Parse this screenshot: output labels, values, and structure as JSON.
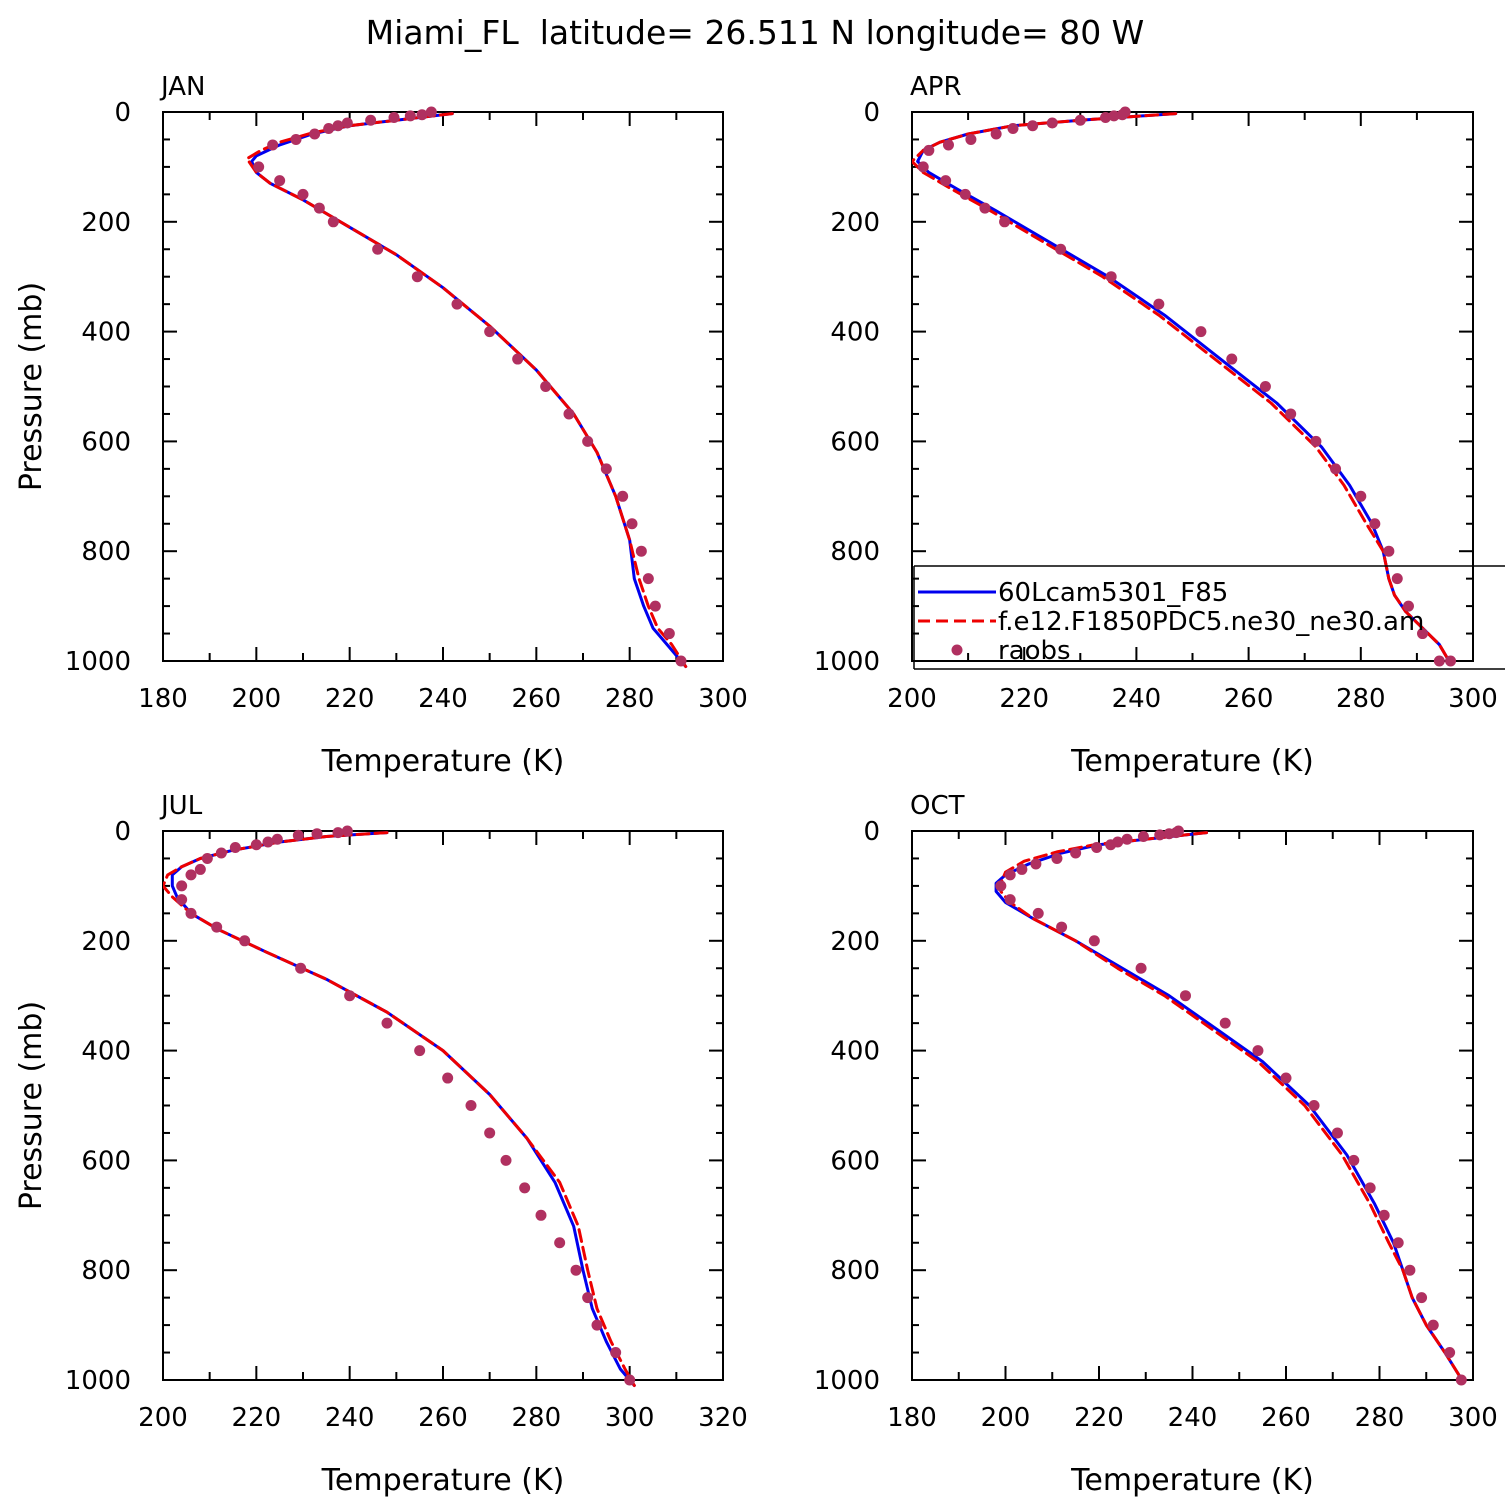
{
  "figure_title": "Miami_FL  latitude= 26.511 N longitude= 80 W",
  "colors": {
    "model1": "#0000ee",
    "model2": "#ee0000",
    "obs": "#b03060"
  },
  "chart_data": [
    {
      "type": "line",
      "label": "JAN",
      "xlabel": "Temperature (K)",
      "ylabel": "Pressure (mb)",
      "xlim": [
        180,
        300
      ],
      "ylim": [
        1000,
        0
      ],
      "xticks": [
        180,
        200,
        220,
        240,
        260,
        280,
        300
      ],
      "yticks": [
        0,
        200,
        400,
        600,
        800,
        1000
      ],
      "legend": null,
      "series": [
        {
          "name": "60Lcam5301_F85",
          "style": "solid",
          "x": [
            242,
            230,
            220,
            212,
            205,
            200,
            199,
            200,
            203,
            210,
            220,
            230,
            240,
            250,
            260,
            268,
            273,
            277,
            280,
            281,
            283,
            285,
            288,
            292
          ],
          "y": [
            3,
            15,
            25,
            40,
            60,
            80,
            90,
            110,
            130,
            160,
            210,
            260,
            320,
            390,
            470,
            550,
            620,
            700,
            780,
            850,
            900,
            940,
            970,
            1010
          ]
        },
        {
          "name": "f.e12.F1850PDC5.ne30_ne30.am",
          "style": "dashed",
          "x": [
            242,
            230,
            220,
            212,
            205,
            201,
            198,
            200,
            203,
            210,
            220,
            230,
            240,
            250,
            260,
            268,
            273,
            277,
            280,
            282,
            284,
            286,
            289,
            292
          ],
          "y": [
            3,
            15,
            25,
            38,
            55,
            70,
            85,
            110,
            130,
            160,
            210,
            260,
            320,
            390,
            470,
            550,
            620,
            700,
            780,
            850,
            900,
            940,
            970,
            1010
          ]
        },
        {
          "name": "raobs",
          "style": "markers",
          "x": [
            237.5,
            235.5,
            233,
            229.5,
            224.5,
            219.5,
            217.5,
            215.5,
            212.5,
            208.5,
            203.5,
            200.5,
            205,
            210,
            213.5,
            216.5,
            226,
            234.5,
            243,
            250,
            256,
            262,
            267,
            271,
            275,
            278.5,
            280.5,
            282.5,
            284,
            285.5,
            288.5,
            291
          ],
          "y": [
            0,
            5,
            7,
            10,
            15,
            20,
            25,
            30,
            40,
            50,
            60,
            100,
            125,
            150,
            175,
            200,
            250,
            300,
            350,
            400,
            450,
            500,
            550,
            600,
            650,
            700,
            750,
            800,
            850,
            900,
            950,
            1000
          ]
        }
      ]
    },
    {
      "type": "line",
      "label": "APR",
      "xlabel": "Temperature (K)",
      "ylabel": "",
      "xlim": [
        200,
        300
      ],
      "ylim": [
        1000,
        0
      ],
      "xticks": [
        200,
        220,
        240,
        260,
        280,
        300
      ],
      "yticks": [
        0,
        200,
        400,
        600,
        800,
        1000
      ],
      "legend": {
        "entries": [
          {
            "label": "60Lcam5301_F85",
            "style": "solid"
          },
          {
            "label": "f.e12.F1850PDC5.ne30_ne30.am",
            "style": "dashed"
          },
          {
            "label": "raobs",
            "style": "markers"
          }
        ]
      },
      "series": [
        {
          "name": "60Lcam5301_F85",
          "style": "solid",
          "x": [
            247,
            230,
            218,
            210,
            205,
            202,
            201,
            203,
            208,
            215,
            225,
            235,
            245,
            255,
            265,
            273,
            278,
            282,
            284,
            285,
            286,
            288,
            291,
            294,
            296
          ],
          "y": [
            3,
            15,
            25,
            40,
            55,
            70,
            90,
            110,
            140,
            180,
            240,
            300,
            370,
            450,
            530,
            610,
            680,
            750,
            800,
            850,
            880,
            910,
            940,
            970,
            1005
          ]
        },
        {
          "name": "f.e12.F1850PDC5.ne30_ne30.am",
          "style": "dashed",
          "x": [
            247,
            230,
            218,
            210,
            205,
            202,
            200,
            202,
            207,
            214,
            224,
            234,
            244,
            254,
            264,
            272,
            277,
            281,
            284,
            285,
            286,
            288,
            291,
            294,
            296
          ],
          "y": [
            3,
            15,
            25,
            40,
            55,
            70,
            90,
            110,
            140,
            180,
            240,
            300,
            370,
            450,
            530,
            610,
            680,
            750,
            800,
            850,
            880,
            910,
            940,
            970,
            1005
          ]
        },
        {
          "name": "raobs",
          "style": "markers",
          "x": [
            238,
            237.5,
            236,
            234.5,
            230,
            225,
            221.5,
            218,
            215,
            210.5,
            206.5,
            203,
            202,
            206,
            209.5,
            213,
            216.5,
            226.5,
            235.5,
            244,
            251.5,
            257,
            263,
            267.5,
            272,
            275.5,
            280,
            282.5,
            285,
            286.5,
            288.5,
            291,
            294,
            296
          ],
          "y": [
            0,
            5,
            7,
            10,
            15,
            20,
            25,
            30,
            40,
            50,
            60,
            70,
            100,
            125,
            150,
            175,
            200,
            250,
            300,
            350,
            400,
            450,
            500,
            550,
            600,
            650,
            700,
            750,
            800,
            850,
            900,
            950,
            1000,
            1000
          ]
        }
      ]
    },
    {
      "type": "line",
      "label": "JUL",
      "xlabel": "Temperature (K)",
      "ylabel": "Pressure (mb)",
      "xlim": [
        200,
        320
      ],
      "ylim": [
        1000,
        0
      ],
      "xticks": [
        200,
        220,
        240,
        260,
        280,
        300,
        320
      ],
      "yticks": [
        0,
        200,
        400,
        600,
        800,
        1000
      ],
      "legend": null,
      "series": [
        {
          "name": "60Lcam5301_F85",
          "style": "solid",
          "x": [
            248,
            235,
            225,
            215,
            208,
            204,
            202,
            202,
            203,
            206,
            212,
            222,
            235,
            248,
            260,
            270,
            278,
            284,
            288,
            290,
            292,
            295,
            298,
            301
          ],
          "y": [
            3,
            10,
            20,
            35,
            50,
            65,
            80,
            100,
            120,
            150,
            180,
            220,
            270,
            330,
            400,
            480,
            560,
            640,
            720,
            800,
            870,
            930,
            980,
            1010
          ]
        },
        {
          "name": "f.e12.F1850PDC5.ne30_ne30.am",
          "style": "dashed",
          "x": [
            248,
            235,
            225,
            215,
            208,
            204,
            201,
            200,
            202,
            206,
            212,
            222,
            235,
            248,
            260,
            270,
            278,
            285,
            289,
            291,
            293,
            296,
            299,
            301
          ],
          "y": [
            3,
            10,
            20,
            35,
            50,
            65,
            80,
            100,
            120,
            150,
            180,
            220,
            270,
            330,
            400,
            480,
            560,
            640,
            720,
            800,
            870,
            930,
            980,
            1010
          ]
        },
        {
          "name": "raobs",
          "style": "markers",
          "x": [
            239.5,
            237.5,
            233,
            229,
            224.5,
            222.5,
            220,
            215.5,
            212.5,
            209.5,
            208,
            206,
            204,
            204,
            206,
            211.5,
            217.5,
            229.5,
            240,
            248,
            255,
            261,
            266,
            270,
            273.5,
            277.5,
            281,
            285,
            288.5,
            291,
            293,
            297,
            300
          ],
          "y": [
            0,
            3,
            5,
            8,
            15,
            20,
            25,
            30,
            40,
            50,
            70,
            80,
            100,
            125,
            150,
            175,
            200,
            250,
            300,
            350,
            400,
            450,
            500,
            550,
            600,
            650,
            700,
            750,
            800,
            850,
            900,
            950,
            1000
          ]
        }
      ]
    },
    {
      "type": "line",
      "label": "OCT",
      "xlabel": "Temperature (K)",
      "ylabel": "",
      "xlim": [
        180,
        300
      ],
      "ylim": [
        1000,
        0
      ],
      "xticks": [
        180,
        200,
        220,
        240,
        260,
        280,
        300
      ],
      "yticks": [
        0,
        200,
        400,
        600,
        800,
        1000
      ],
      "legend": null,
      "series": [
        {
          "name": "60Lcam5301_F85",
          "style": "solid",
          "x": [
            243,
            230,
            220,
            212,
            205,
            200,
            198,
            198,
            200,
            206,
            215,
            225,
            235,
            245,
            255,
            265,
            273,
            279,
            283,
            285,
            287,
            290,
            294,
            298
          ],
          "y": [
            3,
            15,
            25,
            40,
            60,
            80,
            95,
            110,
            130,
            160,
            200,
            250,
            300,
            360,
            420,
            500,
            590,
            680,
            750,
            800,
            850,
            900,
            950,
            1005
          ]
        },
        {
          "name": "f.e12.F1850PDC5.ne30_ne30.am",
          "style": "dashed",
          "x": [
            243,
            230,
            219,
            211,
            204,
            200,
            199,
            199,
            201,
            206,
            215,
            224,
            234,
            244,
            254,
            264,
            272,
            278,
            282,
            285,
            287,
            290,
            294,
            298
          ],
          "y": [
            3,
            15,
            25,
            38,
            55,
            75,
            95,
            110,
            130,
            160,
            200,
            250,
            300,
            360,
            420,
            500,
            590,
            680,
            750,
            800,
            850,
            900,
            950,
            1005
          ]
        },
        {
          "name": "raobs",
          "style": "markers",
          "x": [
            237,
            236.5,
            235,
            233,
            229.5,
            226,
            224,
            222.5,
            219.5,
            215,
            211,
            206.5,
            203.5,
            201,
            199,
            201,
            207,
            212,
            219,
            229,
            238.5,
            247,
            254,
            260,
            266,
            271,
            274.5,
            278,
            281,
            284,
            286.5,
            289,
            291.5,
            295,
            297.5
          ],
          "y": [
            0,
            3,
            5,
            7,
            10,
            15,
            20,
            25,
            30,
            40,
            50,
            60,
            70,
            80,
            100,
            125,
            150,
            175,
            200,
            250,
            300,
            350,
            400,
            450,
            500,
            550,
            600,
            650,
            700,
            750,
            800,
            850,
            900,
            950,
            1000
          ]
        }
      ]
    }
  ]
}
